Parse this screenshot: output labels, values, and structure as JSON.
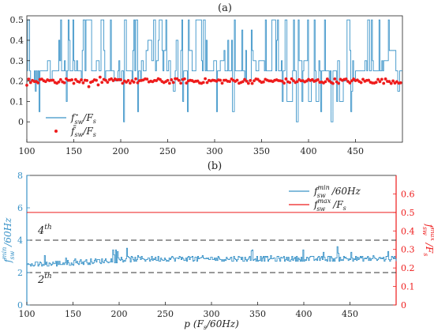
{
  "chart_data": [
    {
      "type": "line",
      "panel_label": "(a)",
      "xlim": [
        100,
        500
      ],
      "ylim": [
        -0.1,
        0.52
      ],
      "x_ticks": [
        100,
        150,
        200,
        250,
        300,
        350,
        400,
        450
      ],
      "y_ticks": [
        0,
        0.1,
        0.2,
        0.3,
        0.4,
        0.5
      ],
      "y_tick_labels": [
        "0",
        "0.1",
        "0.2",
        "0.3",
        "0.4",
        "0.5"
      ],
      "grid": false,
      "legend_position": "bottom-left",
      "series": [
        {
          "name": "fsw* / Fs",
          "legend_main": "f",
          "legend_sub": "sw",
          "legend_sup": "⋆",
          "legend_tail": "/F",
          "legend_tail_sub": "s",
          "style": "step",
          "color": "#3a93c8",
          "levels": [
            0.0,
            0.05,
            0.1,
            0.15,
            0.2,
            0.25,
            0.3,
            0.35,
            0.4,
            0.45,
            0.5
          ],
          "typical_value": 0.25
        },
        {
          "name": "fsw bar / Fs",
          "legend_main": "f̄",
          "legend_sub": "sw",
          "legend_tail": "/F",
          "legend_tail_sub": "s",
          "style": "markers",
          "color": "#ee1c1c",
          "mean_value": 0.2,
          "spread": 0.012
        }
      ]
    },
    {
      "type": "line",
      "panel_label": "(b)",
      "xlim": [
        100,
        500
      ],
      "xlabel_main": "p",
      "xlabel_paren": "(F",
      "xlabel_sub": "s",
      "xlabel_tail": "/60Hz)",
      "x_ticks": [
        100,
        150,
        200,
        250,
        300,
        350,
        400,
        450
      ],
      "left_axis": {
        "ylim": [
          0,
          8
        ],
        "ticks": [
          0,
          2,
          4,
          6,
          8
        ],
        "color": "#3a93c8",
        "label_main": "f",
        "label_sub": "sw",
        "label_sup": "min",
        "label_tail": "/60Hz"
      },
      "right_axis": {
        "ylim": [
          0,
          0.7
        ],
        "ticks": [
          0,
          0.1,
          0.2,
          0.3,
          0.4,
          0.5,
          0.6
        ],
        "tick_labels": [
          "0",
          "0.1",
          "0.2",
          "0.3",
          "0.4",
          "0.5",
          "0.6"
        ],
        "color": "#ee1c1c",
        "label_main": "f",
        "label_sub": "sw",
        "label_sup": "max",
        "label_tail": "/F",
        "label_tail_sub": "s"
      },
      "legend_position": "top-right",
      "reference_lines": [
        {
          "label_main": "4",
          "label_sup": "th",
          "value_left_axis": 4,
          "style": "dashed",
          "color": "#333333"
        },
        {
          "label_main": "2",
          "label_sup": "th",
          "value_left_axis": 2,
          "style": "dashed",
          "color": "#333333"
        }
      ],
      "series": [
        {
          "name": "fsw min / 60Hz",
          "legend_main": "f",
          "legend_sub": "sw",
          "legend_sup": "min",
          "legend_tail": "/60Hz",
          "axis": "left",
          "style": "step",
          "color": "#3a93c8",
          "start_value": 2.4,
          "end_value": 2.8,
          "range": [
            2.2,
            3.6
          ]
        },
        {
          "name": "fsw max / Fs",
          "legend_main": "f",
          "legend_sub": "sw",
          "legend_sup": "max",
          "legend_tail": "/F",
          "legend_tail_sub": "s",
          "axis": "right",
          "style": "line",
          "color": "#ee1c1c",
          "value": 0.5
        }
      ]
    }
  ]
}
